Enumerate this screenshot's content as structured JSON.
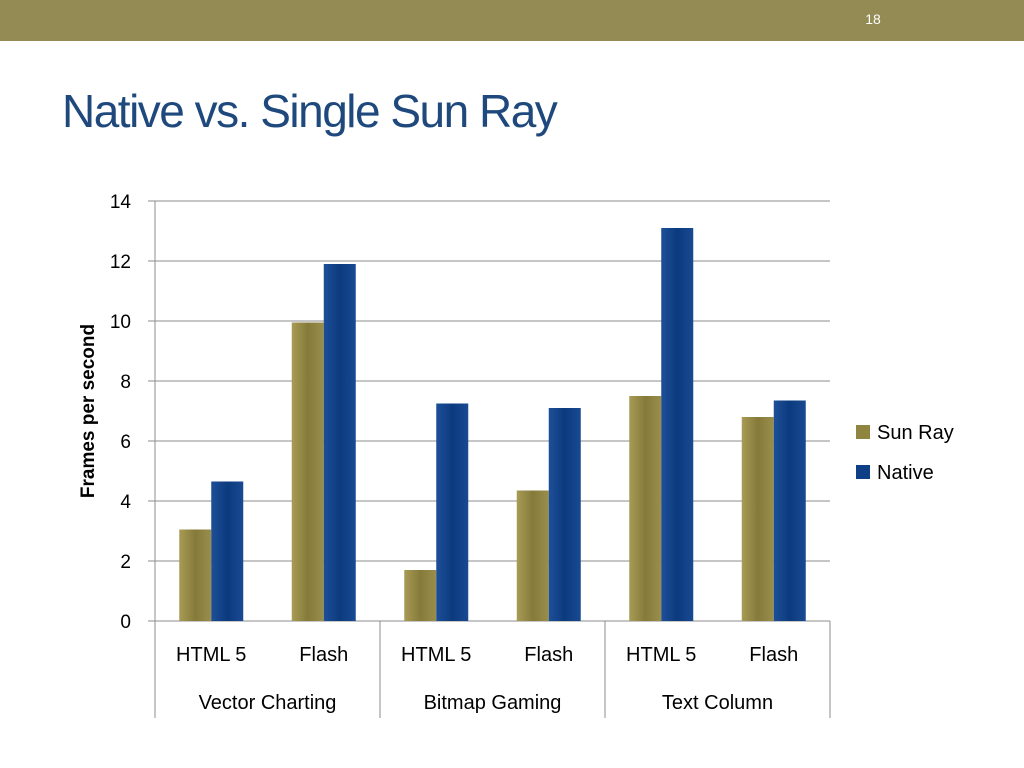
{
  "slide": {
    "number": "18",
    "title": "Native vs. Single Sun Ray"
  },
  "colors": {
    "top_bar": "#948a54",
    "title": "#1f497d",
    "sun_ray": "#8f8440",
    "native": "#0f3f86"
  },
  "chart_data": {
    "type": "bar",
    "title": "",
    "xlabel": "",
    "ylabel": "Frames per second",
    "ylim": [
      0,
      14
    ],
    "yticks": [
      0,
      2,
      4,
      6,
      8,
      10,
      12,
      14
    ],
    "grid": true,
    "legend_position": "right",
    "categories": [
      "HTML 5",
      "Flash",
      "HTML 5",
      "Flash",
      "HTML 5",
      "Flash"
    ],
    "groups": [
      {
        "label": "Vector Charting",
        "span": 2
      },
      {
        "label": "Bitmap Gaming",
        "span": 2
      },
      {
        "label": "Text Column",
        "span": 2
      }
    ],
    "series": [
      {
        "name": "Sun Ray",
        "color": "#8f8440",
        "values": [
          3.05,
          9.95,
          1.7,
          4.35,
          7.5,
          6.8
        ]
      },
      {
        "name": "Native",
        "color": "#0f3f86",
        "values": [
          4.65,
          11.9,
          7.25,
          7.1,
          13.1,
          7.35
        ]
      }
    ]
  }
}
